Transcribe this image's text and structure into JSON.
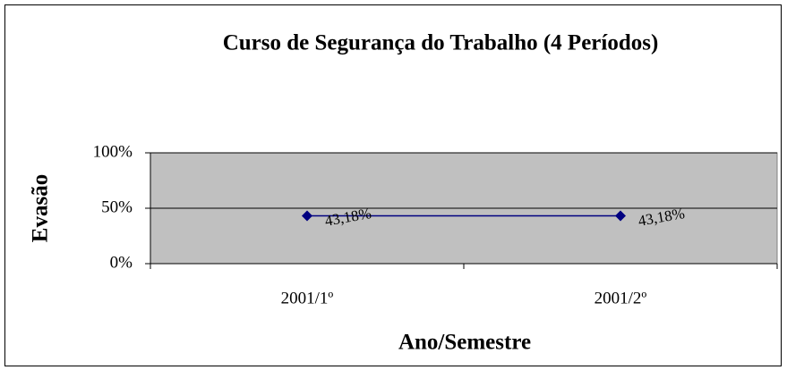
{
  "chart_data": {
    "type": "line",
    "title": "Curso de Segurança do Trabalho (4 Períodos)",
    "x_label": "Ano/Semestre",
    "y_label": "Evasão",
    "categories": [
      "2001/1º",
      "2001/2º"
    ],
    "series": [
      {
        "name": "Evasão",
        "color": "#000080",
        "values": [
          43.18,
          43.18
        ],
        "value_labels": [
          "43,18%",
          "43,18%"
        ]
      }
    ],
    "ylim": [
      0,
      100
    ],
    "yticks": [
      {
        "value": 0,
        "label": "0%"
      },
      {
        "value": 50,
        "label": "50%"
      },
      {
        "value": 100,
        "label": "100%"
      }
    ],
    "grid": true,
    "plot_background": "#c0c0c0"
  }
}
